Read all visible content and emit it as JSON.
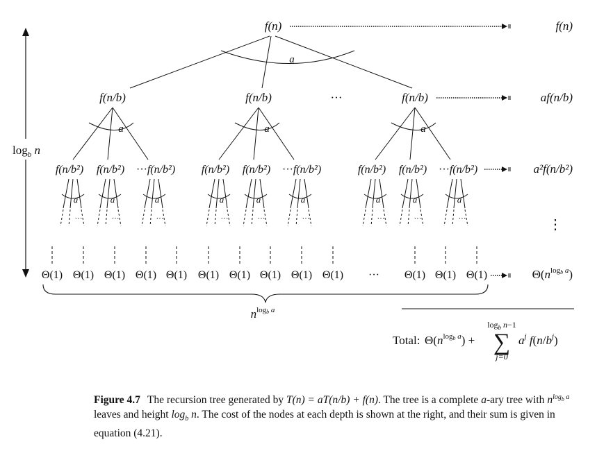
{
  "tree": {
    "root": "f(n)",
    "level1": [
      "f(n/b)",
      "f(n/b)",
      "f(n/b)"
    ],
    "level1_ellipsis": "···",
    "level2_group": [
      "f(n/b²)",
      "f(n/b²)",
      "···",
      "f(n/b²)"
    ],
    "branch_label": "a",
    "sub_ellipsis": "···",
    "leaf": "Θ(1)",
    "leaf_ellipsis": "···",
    "leaves_count_label": "n^(log_b a)"
  },
  "height_label": "log_b n",
  "row_costs": [
    "f(n)",
    "af(n/b)",
    "a²f(n/b²)",
    "⋮",
    "Θ(n^(log_b a))"
  ],
  "total": {
    "prefix": "Total:",
    "sum_upper": "log_b n−1",
    "sum_lower": "j=0"
  },
  "caption": {
    "label": "Figure 4.7",
    "seg1": "The recursion tree generated by ",
    "eq": "T(n) = aT(n/b) + f(n)",
    "seg2": ". The tree is a complete ",
    "a": "a",
    "seg3": "-ary tree with ",
    "leaves": "n^(log_b a)",
    "seg4": " leaves and height ",
    "height": "log_b n",
    "seg5": ". The cost of the nodes at each depth is shown at the right, and their sum is given in equation (4.21)."
  }
}
